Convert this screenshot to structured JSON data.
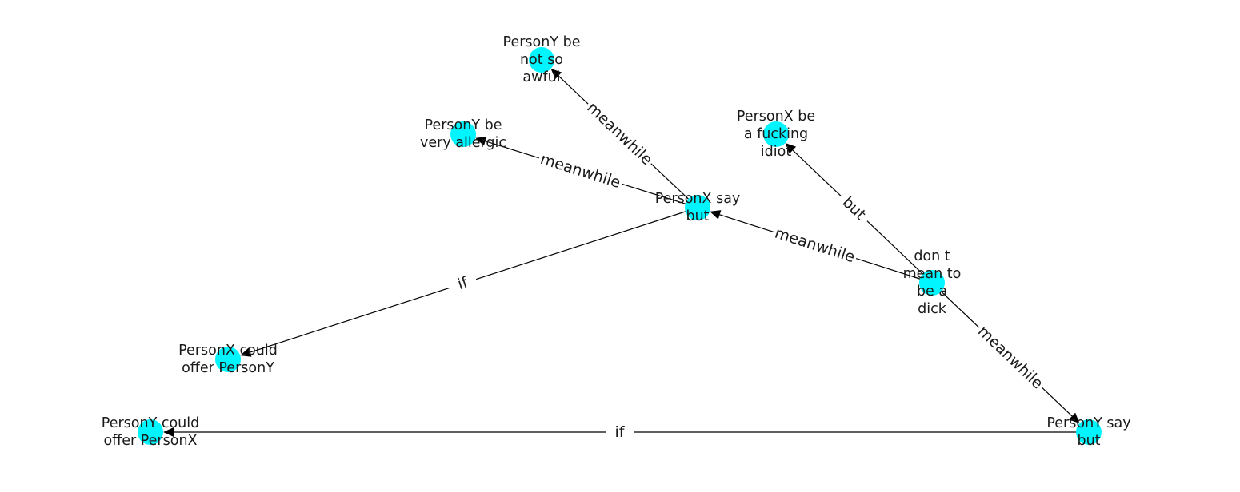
{
  "graph": {
    "node_color": "#00f5ff",
    "edge_color": "#000000",
    "nodes": [
      {
        "id": "n1",
        "lines": [
          "PersonY be",
          "not so",
          "awful"
        ]
      },
      {
        "id": "n2",
        "lines": [
          "PersonY be",
          "very allergic"
        ]
      },
      {
        "id": "n3",
        "lines": [
          "PersonX be",
          "a fucking",
          "idiot"
        ]
      },
      {
        "id": "n4",
        "lines": [
          "PersonX say",
          "but"
        ]
      },
      {
        "id": "n5",
        "lines": [
          "don t",
          "mean to",
          "be a",
          "dick"
        ]
      },
      {
        "id": "n6",
        "lines": [
          "PersonX could",
          "offer PersonY"
        ]
      },
      {
        "id": "n7",
        "lines": [
          "PersonY could",
          "offer PersonX"
        ]
      },
      {
        "id": "n8",
        "lines": [
          "PersonY say",
          "but"
        ]
      }
    ],
    "edges": [
      {
        "from": "n4",
        "to": "n1",
        "label": "meanwhile"
      },
      {
        "from": "n4",
        "to": "n2",
        "label": "meanwhile"
      },
      {
        "from": "n4",
        "to": "n6",
        "label": "if"
      },
      {
        "from": "n5",
        "to": "n4",
        "label": "meanwhile"
      },
      {
        "from": "n5",
        "to": "n3",
        "label": "but"
      },
      {
        "from": "n5",
        "to": "n8",
        "label": "meanwhile"
      },
      {
        "from": "n8",
        "to": "n7",
        "label": "if"
      }
    ]
  }
}
